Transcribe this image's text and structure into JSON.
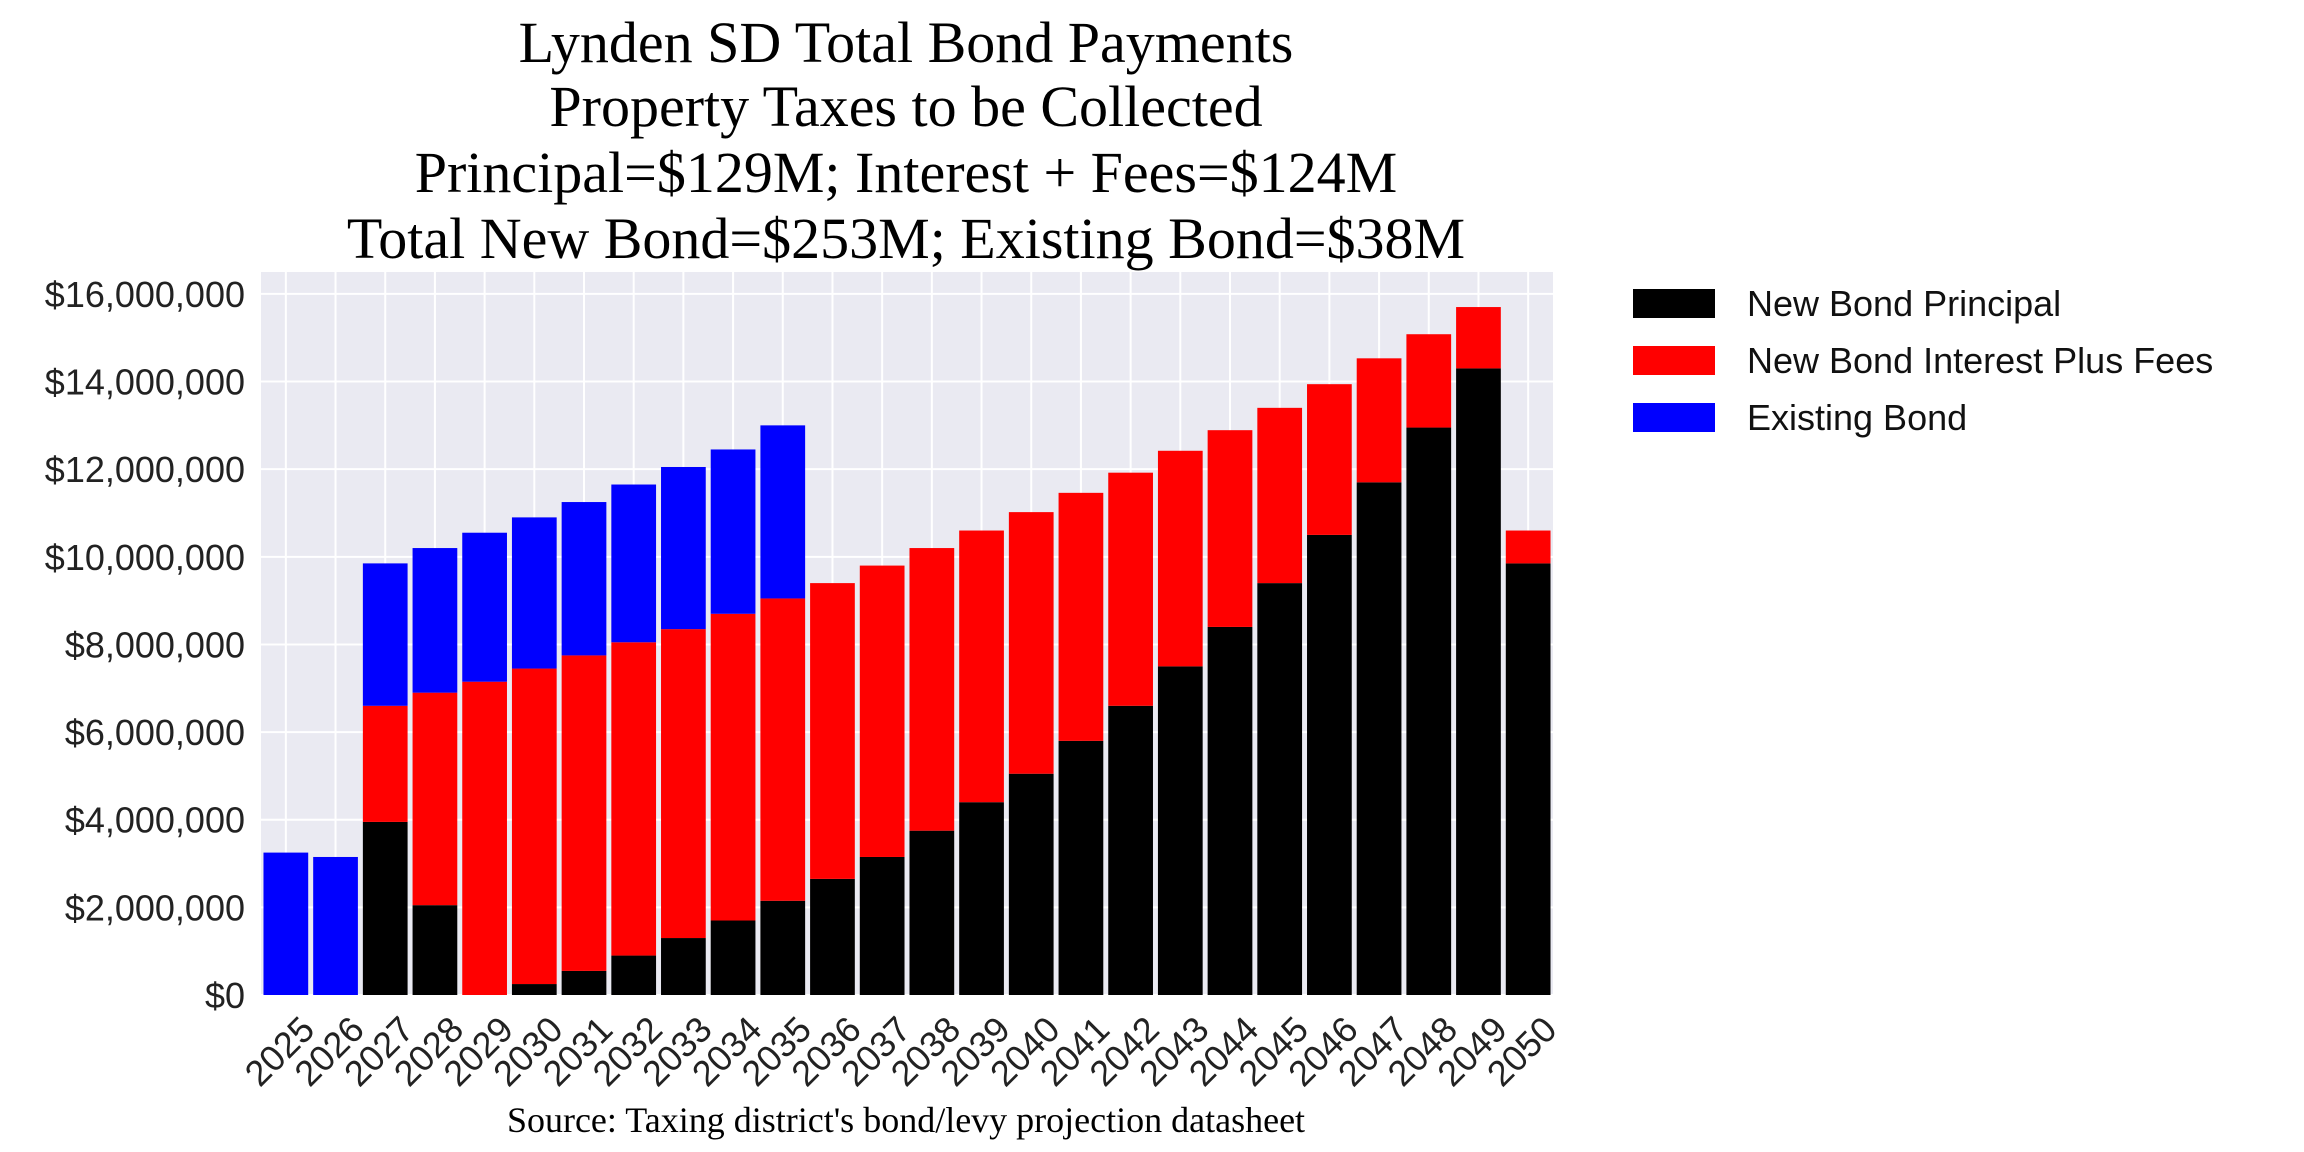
{
  "chart_data": {
    "type": "bar",
    "stacked": true,
    "title_lines": [
      "Lynden SD Total Bond Payments",
      "Property Taxes to be Collected",
      "Principal=$129M; Interest + Fees=$124M",
      "Total New Bond=$253M; Existing Bond=$38M"
    ],
    "source": "Source: Taxing district's bond/levy projection datasheet",
    "categories": [
      "2025",
      "2026",
      "2027",
      "2028",
      "2029",
      "2030",
      "2031",
      "2032",
      "2033",
      "2034",
      "2035",
      "2036",
      "2037",
      "2038",
      "2039",
      "2040",
      "2041",
      "2042",
      "2043",
      "2044",
      "2045",
      "2046",
      "2047",
      "2048",
      "2049",
      "2050"
    ],
    "series": [
      {
        "name": "New Bond Principal",
        "color": "#000000",
        "values": [
          0,
          0,
          3950000,
          2050000,
          0,
          250000,
          550000,
          900000,
          1300000,
          1700000,
          2150000,
          2650000,
          3150000,
          3750000,
          4400000,
          5050000,
          5800000,
          6600000,
          7500000,
          8400000,
          9400000,
          10500000,
          11700000,
          12950000,
          14300000,
          9850000
        ]
      },
      {
        "name": "New Bond Interest Plus Fees",
        "color": "#ff0000",
        "values": [
          0,
          0,
          2650000,
          4850000,
          7150000,
          7200000,
          7200000,
          7150000,
          7050000,
          7000000,
          6900000,
          6750000,
          6650000,
          6450000,
          6200000,
          5970000,
          5660000,
          5320000,
          4920000,
          4490000,
          4000000,
          3440000,
          2830000,
          2130000,
          1400000,
          750000
        ]
      },
      {
        "name": "Existing Bond",
        "color": "#0000ff",
        "values": [
          3250000,
          3150000,
          3250000,
          3300000,
          3400000,
          3450000,
          3500000,
          3600000,
          3700000,
          3750000,
          3950000,
          0,
          0,
          0,
          0,
          0,
          0,
          0,
          0,
          0,
          0,
          0,
          0,
          0,
          0,
          0
        ]
      }
    ],
    "y_ticks": [
      "$0",
      "$2,000,000",
      "$4,000,000",
      "$6,000,000",
      "$8,000,000",
      "$10,000,000",
      "$12,000,000",
      "$14,000,000",
      "$16,000,000"
    ],
    "ylim": [
      0,
      16500000
    ],
    "grid": true,
    "legend_position": "outside-right-top",
    "plot_background": "#eaeaf2"
  }
}
